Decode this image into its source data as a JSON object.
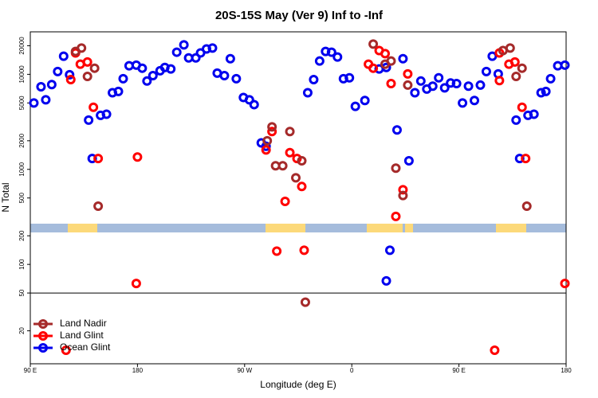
{
  "chart_data": {
    "type": "scatter",
    "title": "20S-15S May (Ver 9)   Inf to -Inf",
    "xlabel": "Longitude (deg E)",
    "ylabel": "N Total",
    "xlim": [
      90,
      540
    ],
    "ylim": [
      9,
      28000
    ],
    "log_y": true,
    "legend": "lower left",
    "hlines": [
      50
    ],
    "xticks": [
      {
        "value": 90,
        "label": "90 E"
      },
      {
        "value": 180,
        "label": "180"
      },
      {
        "value": 270,
        "label": "90 W"
      },
      {
        "value": 360,
        "label": "0"
      },
      {
        "value": 450,
        "label": "90 E"
      },
      {
        "value": 540,
        "label": "180"
      }
    ],
    "yticks": [
      20,
      50,
      100,
      200,
      500,
      1000,
      2000,
      5000,
      10000,
      20000
    ],
    "series": [
      {
        "name": "Land Nadir",
        "color": "#a52a2a",
        "x": [
          128,
          133,
          138,
          144,
          147,
          289,
          293,
          296,
          302,
          308,
          313,
          318,
          321,
          378,
          388,
          393,
          397,
          403,
          407,
          487,
          493,
          498,
          503,
          507
        ],
        "values": [
          17400,
          18900,
          9500,
          11600,
          410,
          2000,
          2800,
          1090,
          1090,
          2500,
          815,
          1230,
          40,
          20800,
          12800,
          13800,
          1030,
          530,
          7700,
          17800,
          18900,
          9500,
          11600,
          410
        ]
      },
      {
        "name": "Land Glint",
        "color": "#ff0000",
        "x": [
          124,
          128,
          132,
          138,
          143,
          147,
          120,
          179,
          180,
          288,
          293,
          297,
          304,
          308,
          314,
          318,
          320,
          374,
          378,
          383,
          388,
          393,
          397,
          403,
          407,
          480,
          484,
          484,
          492,
          497,
          503,
          506,
          539
        ],
        "values": [
          8800,
          16800,
          12800,
          13500,
          4500,
          1300,
          12.5,
          63,
          1350,
          1600,
          2500,
          138,
          460,
          1500,
          1300,
          660,
          141,
          12800,
          11600,
          17800,
          16500,
          8000,
          320,
          610,
          10100,
          12.5,
          16800,
          8600,
          12800,
          13500,
          4500,
          1300,
          63
        ]
      },
      {
        "name": "Ocean Glint",
        "color": "#0000ee",
        "x": [
          93,
          99,
          103,
          108,
          113,
          118,
          123,
          139,
          142,
          149,
          154,
          159,
          164,
          168,
          173,
          179,
          184,
          188,
          193,
          199,
          203,
          208,
          213,
          219,
          223,
          229,
          233,
          238,
          243,
          247,
          253,
          258,
          263,
          269,
          274,
          278,
          284,
          288,
          323,
          328,
          333,
          338,
          343,
          348,
          353,
          358,
          363,
          371,
          383,
          389,
          389,
          392,
          398,
          403,
          408,
          413,
          418,
          423,
          428,
          433,
          438,
          443,
          448,
          453,
          458,
          463,
          468,
          473,
          478,
          483,
          498,
          501,
          508,
          513,
          519,
          523,
          527,
          533,
          539
        ],
        "values": [
          5000,
          7400,
          5400,
          7800,
          10700,
          15500,
          9900,
          3300,
          1300,
          3700,
          3800,
          6400,
          6600,
          9000,
          12300,
          12500,
          11600,
          8500,
          9700,
          10900,
          11800,
          11400,
          17100,
          20400,
          14900,
          14900,
          16800,
          18500,
          18900,
          10300,
          9700,
          14600,
          9000,
          5700,
          5400,
          4800,
          1900,
          1750,
          6400,
          8800,
          13800,
          17400,
          17100,
          15200,
          9000,
          9200,
          4600,
          5300,
          11400,
          67,
          11800,
          141,
          2600,
          14600,
          1230,
          6400,
          8500,
          7000,
          7500,
          9200,
          7200,
          8100,
          8000,
          5000,
          7500,
          5300,
          7700,
          10700,
          15500,
          10100,
          3300,
          1300,
          3700,
          3800,
          6400,
          6600,
          9000,
          12300,
          12500
        ]
      }
    ]
  }
}
